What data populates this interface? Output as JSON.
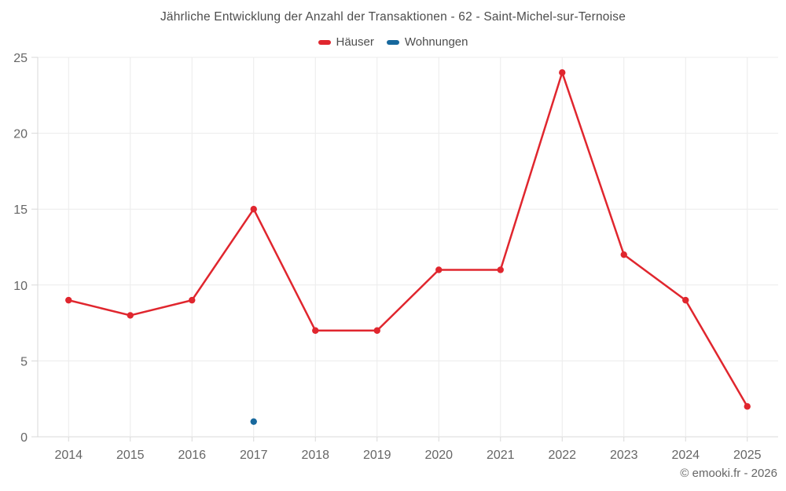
{
  "chart_data": {
    "type": "line",
    "title": "Jährliche Entwicklung der Anzahl der Transaktionen - 62 - Saint-Michel-sur-Ternoise",
    "categories": [
      "2014",
      "2015",
      "2016",
      "2017",
      "2018",
      "2019",
      "2020",
      "2021",
      "2022",
      "2023",
      "2024",
      "2025"
    ],
    "series": [
      {
        "name": "Häuser",
        "color": "#e0262e",
        "values": [
          9,
          8,
          9,
          15,
          7,
          7,
          11,
          11,
          24,
          12,
          9,
          2
        ]
      },
      {
        "name": "Wohnungen",
        "color": "#17689d",
        "values": [
          null,
          null,
          null,
          1,
          null,
          null,
          null,
          null,
          null,
          null,
          null,
          null
        ]
      }
    ],
    "ylim": [
      0,
      25
    ],
    "ytick_step": 5,
    "yticks": [
      0,
      5,
      10,
      15,
      20,
      25
    ],
    "grid": true,
    "legend_position": "top",
    "xlabel": "",
    "ylabel": ""
  },
  "footer": {
    "text": "© emooki.fr - 2026"
  }
}
